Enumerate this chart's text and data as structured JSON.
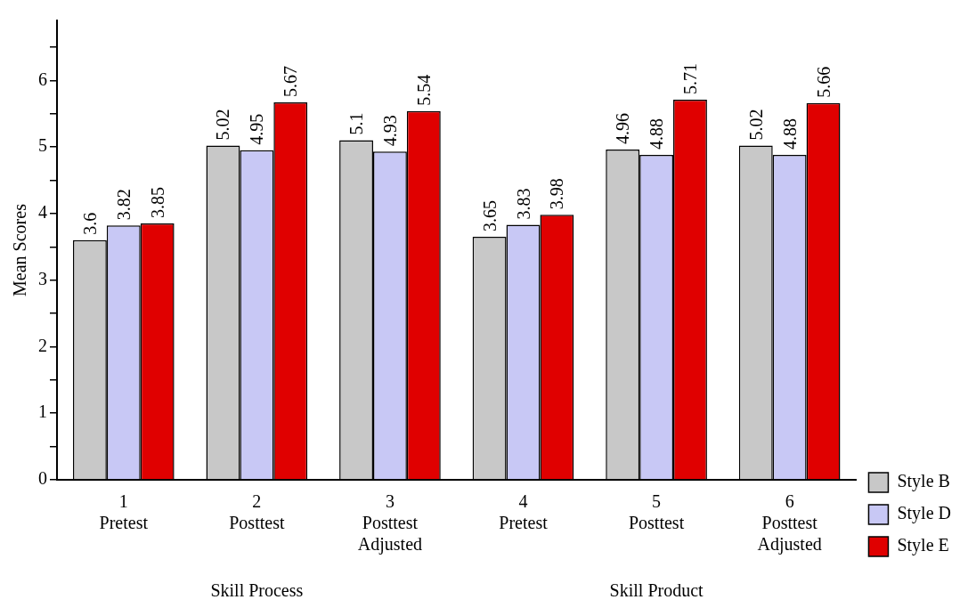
{
  "chart_data": {
    "type": "bar",
    "ylabel": "Mean Scores",
    "categories": [
      "1\nPretest",
      "2\nPosttest",
      "3\nPosttest\nAdjusted",
      "4\nPretest",
      "5\nPosttest",
      "6\nPosttest\nAdjusted"
    ],
    "series": [
      {
        "name": "Style B",
        "color": "#c8c8c8",
        "values": [
          3.6,
          5.02,
          5.1,
          3.65,
          4.96,
          5.02
        ]
      },
      {
        "name": "Style D",
        "color": "#c8c8f5",
        "values": [
          3.82,
          4.95,
          4.93,
          3.83,
          4.88,
          4.88
        ]
      },
      {
        "name": "Style E",
        "color": "#e00000",
        "values": [
          3.85,
          5.67,
          5.54,
          3.98,
          5.71,
          5.66
        ]
      }
    ],
    "ylim": [
      0,
      6.9
    ],
    "yticks": [
      0,
      {
        "value": 0.5,
        "label": null
      },
      1,
      {
        "value": 1.5,
        "label": null
      },
      2,
      {
        "value": 2.5,
        "label": null
      },
      3,
      {
        "value": 3.5,
        "label": null
      },
      4,
      {
        "value": 4.5,
        "label": null
      },
      5,
      {
        "value": 5.5,
        "label": null
      },
      6,
      {
        "value": 6.5,
        "label": null
      }
    ],
    "grid": false,
    "legend": "bottom right",
    "data_labels": true,
    "annotations": [
      "Skill Process",
      "Skill Product"
    ]
  }
}
